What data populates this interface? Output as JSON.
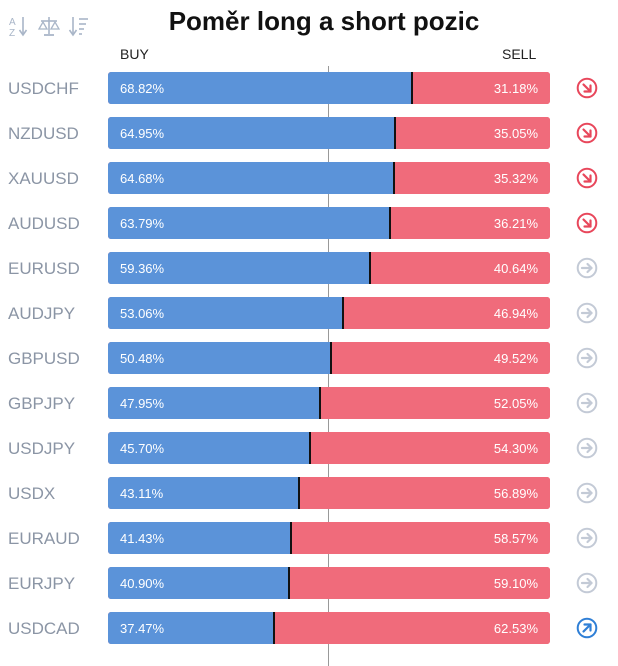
{
  "header": {
    "title": "Poměr long a short pozic",
    "buy_label": "BUY",
    "sell_label": "SELL",
    "tools": [
      "sort-alpha-icon",
      "balance-scale-icon",
      "sort-numeric-icon"
    ]
  },
  "colors": {
    "buy": "#5b93d9",
    "sell": "#f06b7b",
    "down": "#e8475b",
    "neutral": "#c3cad6",
    "up": "#2f7fd6"
  },
  "chart_data": {
    "type": "bar",
    "stacked": true,
    "orientation": "horizontal",
    "categories": [
      "USDCHF",
      "NZDUSD",
      "XAUUSD",
      "AUDUSD",
      "EURUSD",
      "AUDJPY",
      "GBPUSD",
      "GBPJPY",
      "USDJPY",
      "USDX",
      "EURAUD",
      "EURJPY",
      "USDCAD"
    ],
    "series": [
      {
        "name": "BUY",
        "values": [
          68.82,
          64.95,
          64.68,
          63.79,
          59.36,
          53.06,
          50.48,
          47.95,
          45.7,
          43.11,
          41.43,
          40.9,
          37.47
        ]
      },
      {
        "name": "SELL",
        "values": [
          31.18,
          35.05,
          35.32,
          36.21,
          40.64,
          46.94,
          49.52,
          52.05,
          54.3,
          56.89,
          58.57,
          59.1,
          62.53
        ]
      }
    ],
    "buy_labels": [
      "68.82%",
      "64.95%",
      "64.68%",
      "63.79%",
      "59.36%",
      "53.06%",
      "50.48%",
      "47.95%",
      "45.70%",
      "43.11%",
      "41.43%",
      "40.90%",
      "37.47%"
    ],
    "sell_labels": [
      "31.18%",
      "35.05%",
      "35.32%",
      "36.21%",
      "40.64%",
      "46.94%",
      "49.52%",
      "52.05%",
      "54.30%",
      "56.89%",
      "58.57%",
      "59.10%",
      "62.53%"
    ],
    "trend_icons": [
      "arrow-down-right-icon",
      "arrow-down-right-icon",
      "arrow-down-right-icon",
      "arrow-down-right-icon",
      "arrow-right-icon",
      "arrow-right-icon",
      "arrow-right-icon",
      "arrow-right-icon",
      "arrow-right-icon",
      "arrow-right-icon",
      "arrow-right-icon",
      "arrow-right-icon",
      "arrow-up-right-icon"
    ],
    "title": "Poměr long a short pozic",
    "xlim": [
      0,
      100
    ],
    "reference_line": 50
  }
}
